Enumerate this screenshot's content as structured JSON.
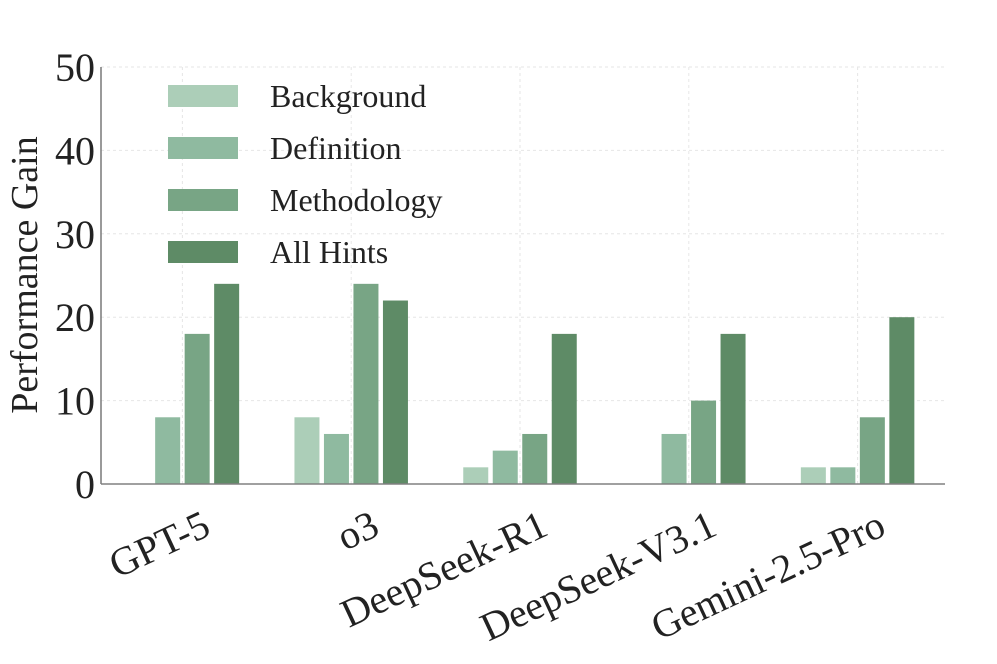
{
  "chart_data": {
    "type": "bar",
    "title": "",
    "xlabel": "",
    "ylabel": "Performance Gain",
    "ylim": [
      0,
      50
    ],
    "yticks": [
      0,
      10,
      20,
      30,
      40,
      50
    ],
    "grid": true,
    "legend_position": "top-left",
    "categories": [
      "GPT-5",
      "o3",
      "DeepSeek-R1",
      "DeepSeek-V3.1",
      "Gemini-2.5-Pro"
    ],
    "series": [
      {
        "name": "Background",
        "color": "#acceb8",
        "values": [
          0,
          8,
          2,
          0,
          2
        ]
      },
      {
        "name": "Definition",
        "color": "#8fbaa0",
        "values": [
          8,
          6,
          4,
          6,
          2
        ]
      },
      {
        "name": "Methodology",
        "color": "#78a585",
        "values": [
          18,
          24,
          6,
          10,
          8
        ]
      },
      {
        "name": "All Hints",
        "color": "#5e8b66",
        "values": [
          24,
          22,
          18,
          18,
          20
        ]
      }
    ]
  }
}
